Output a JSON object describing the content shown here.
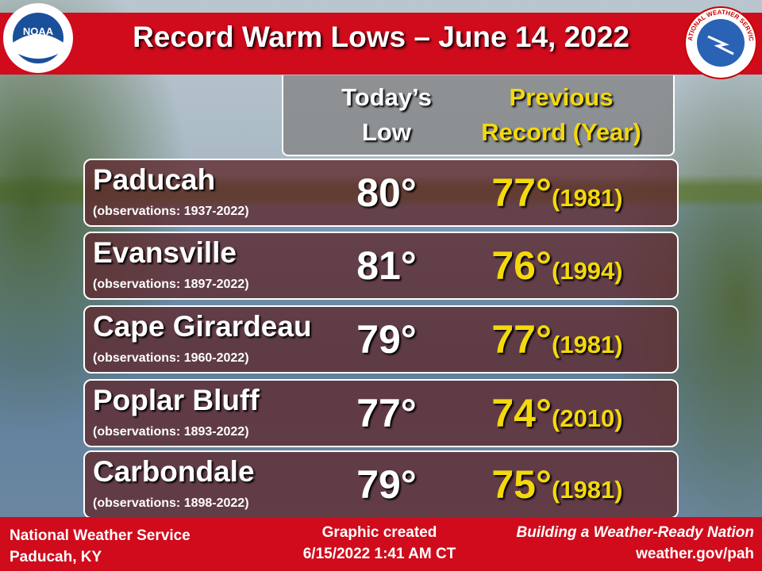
{
  "header": {
    "title": "Record Warm Lows – June 14, 2022"
  },
  "logos": {
    "noaa": "NOAA",
    "nws": "NATIONAL WEATHER SERVICE"
  },
  "table": {
    "headers": {
      "today": [
        "Today’s",
        "Low"
      ],
      "record": [
        "Previous",
        "Record (Year)"
      ]
    },
    "rows": [
      {
        "city": "Paducah",
        "observations": "(observations: 1937-2022)",
        "today": "80°",
        "record": "77°",
        "year": "(1981)"
      },
      {
        "city": "Evansville",
        "observations": "(observations: 1897-2022)",
        "today": "81°",
        "record": "76°",
        "year": "(1994)"
      },
      {
        "city": "Cape Girardeau",
        "observations": "(observations: 1960-2022)",
        "today": "79°",
        "record": "77°",
        "year": "(1981)"
      },
      {
        "city": "Poplar Bluff",
        "observations": "(observations: 1893-2022)",
        "today": "77°",
        "record": "74°",
        "year": "(2010)"
      },
      {
        "city": "Carbondale",
        "observations": "(observations: 1898-2022)",
        "today": "79°",
        "record": "75°",
        "year": "(1981)"
      }
    ]
  },
  "footer": {
    "left": [
      "National Weather Service",
      "Paducah, KY"
    ],
    "center": [
      "Graphic created",
      "6/15/2022 1:41 AM CT"
    ],
    "right": [
      "Building a Weather-Ready Nation",
      "weather.gov/pah"
    ]
  }
}
